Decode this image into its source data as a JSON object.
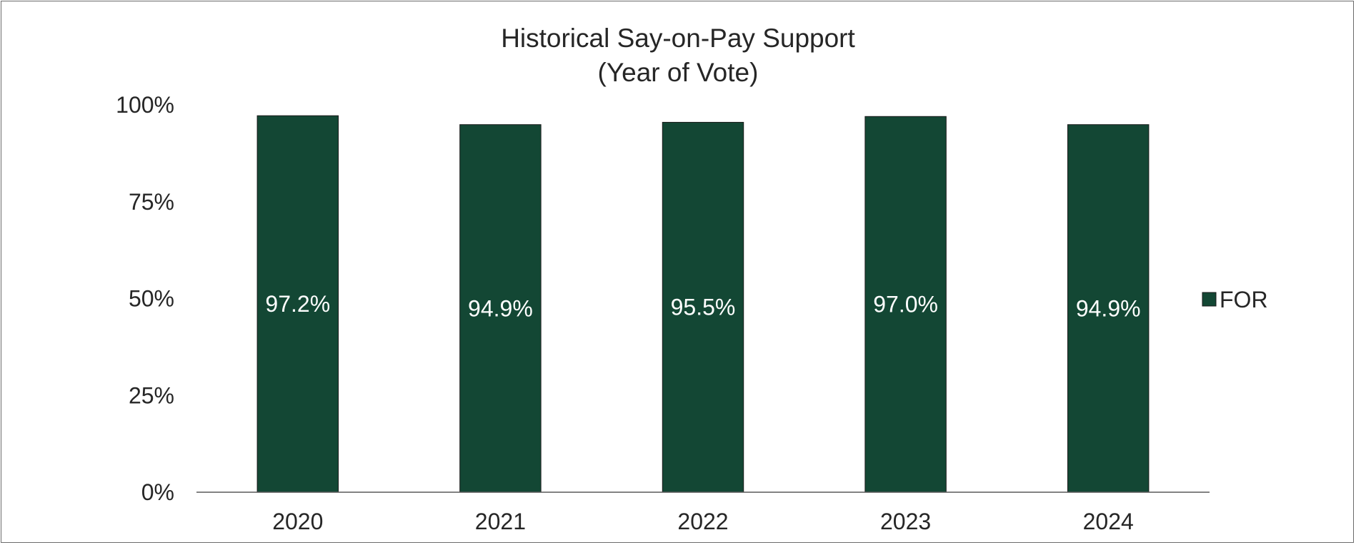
{
  "chart_data": {
    "type": "bar",
    "title": "Historical Say-on-Pay Support",
    "subtitle": "(Year of Vote)",
    "categories": [
      "2020",
      "2021",
      "2022",
      "2023",
      "2024"
    ],
    "series": [
      {
        "name": "FOR",
        "values": [
          97.2,
          94.9,
          95.5,
          97.0,
          94.9
        ],
        "labels": [
          "97.2%",
          "94.9%",
          "95.5%",
          "97.0%",
          "94.9%"
        ],
        "color": "#134734"
      }
    ],
    "xlabel": "",
    "ylabel": "",
    "ylim": [
      0,
      100
    ],
    "yticks": [
      0,
      25,
      50,
      75,
      100
    ],
    "ytick_labels": [
      "0%",
      "25%",
      "50%",
      "75%",
      "100%"
    ],
    "grid": false,
    "legend": "right"
  }
}
